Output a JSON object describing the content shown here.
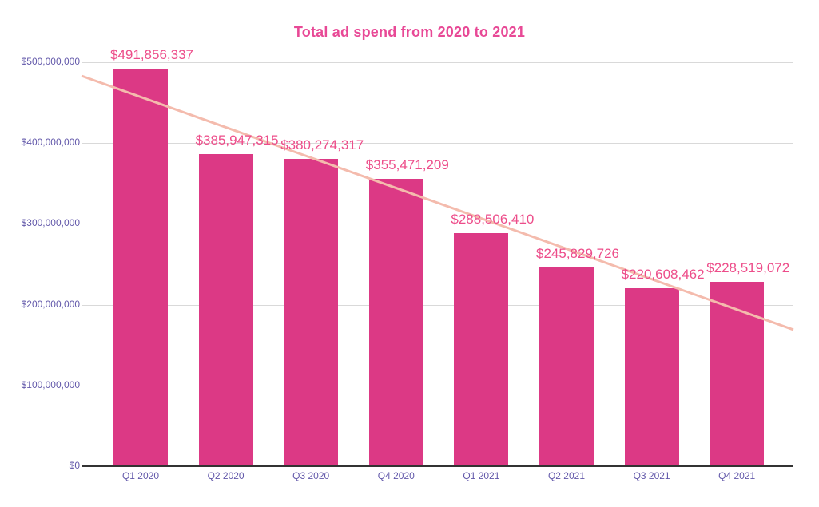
{
  "chart_data": {
    "type": "bar",
    "title": "Total ad spend from 2020 to 2021",
    "categories": [
      "Q1 2020",
      "Q2 2020",
      "Q3 2020",
      "Q4 2020",
      "Q1 2021",
      "Q2 2021",
      "Q3 2021",
      "Q4 2021"
    ],
    "values": [
      491856337,
      385947315,
      380274317,
      355471209,
      288506410,
      245829726,
      220608462,
      228519072
    ],
    "data_labels": [
      "$491,856,337",
      "$385,947,315",
      "$380,274,317",
      "$355,471,209",
      "$288,506,410",
      "$245,829,726",
      "$220,608,462",
      "$228,519,072"
    ],
    "y_ticks": [
      {
        "value": 0,
        "label": "$0"
      },
      {
        "value": 100000000,
        "label": "$100,000,000"
      },
      {
        "value": 200000000,
        "label": "$200,000,000"
      },
      {
        "value": 300000000,
        "label": "$300,000,000"
      },
      {
        "value": 400000000,
        "label": "$400,000,000"
      },
      {
        "value": 500000000,
        "label": "$500,000,000"
      }
    ],
    "ylim": [
      0,
      500000000
    ],
    "xlabel": "",
    "ylabel": "",
    "grid": true,
    "legend": "none",
    "trendline": {
      "type": "linear",
      "start_value": 483200000,
      "end_value": 169000000
    },
    "colors": {
      "bar": "#DC3985",
      "title": "#E84996",
      "data_label": "#ED4D8A",
      "axis_label": "#6258AA",
      "gridline": "#D9D9D9",
      "axis_line": "#333333",
      "trendline": "#F4BBAD",
      "background": "#FFFFFF"
    }
  }
}
